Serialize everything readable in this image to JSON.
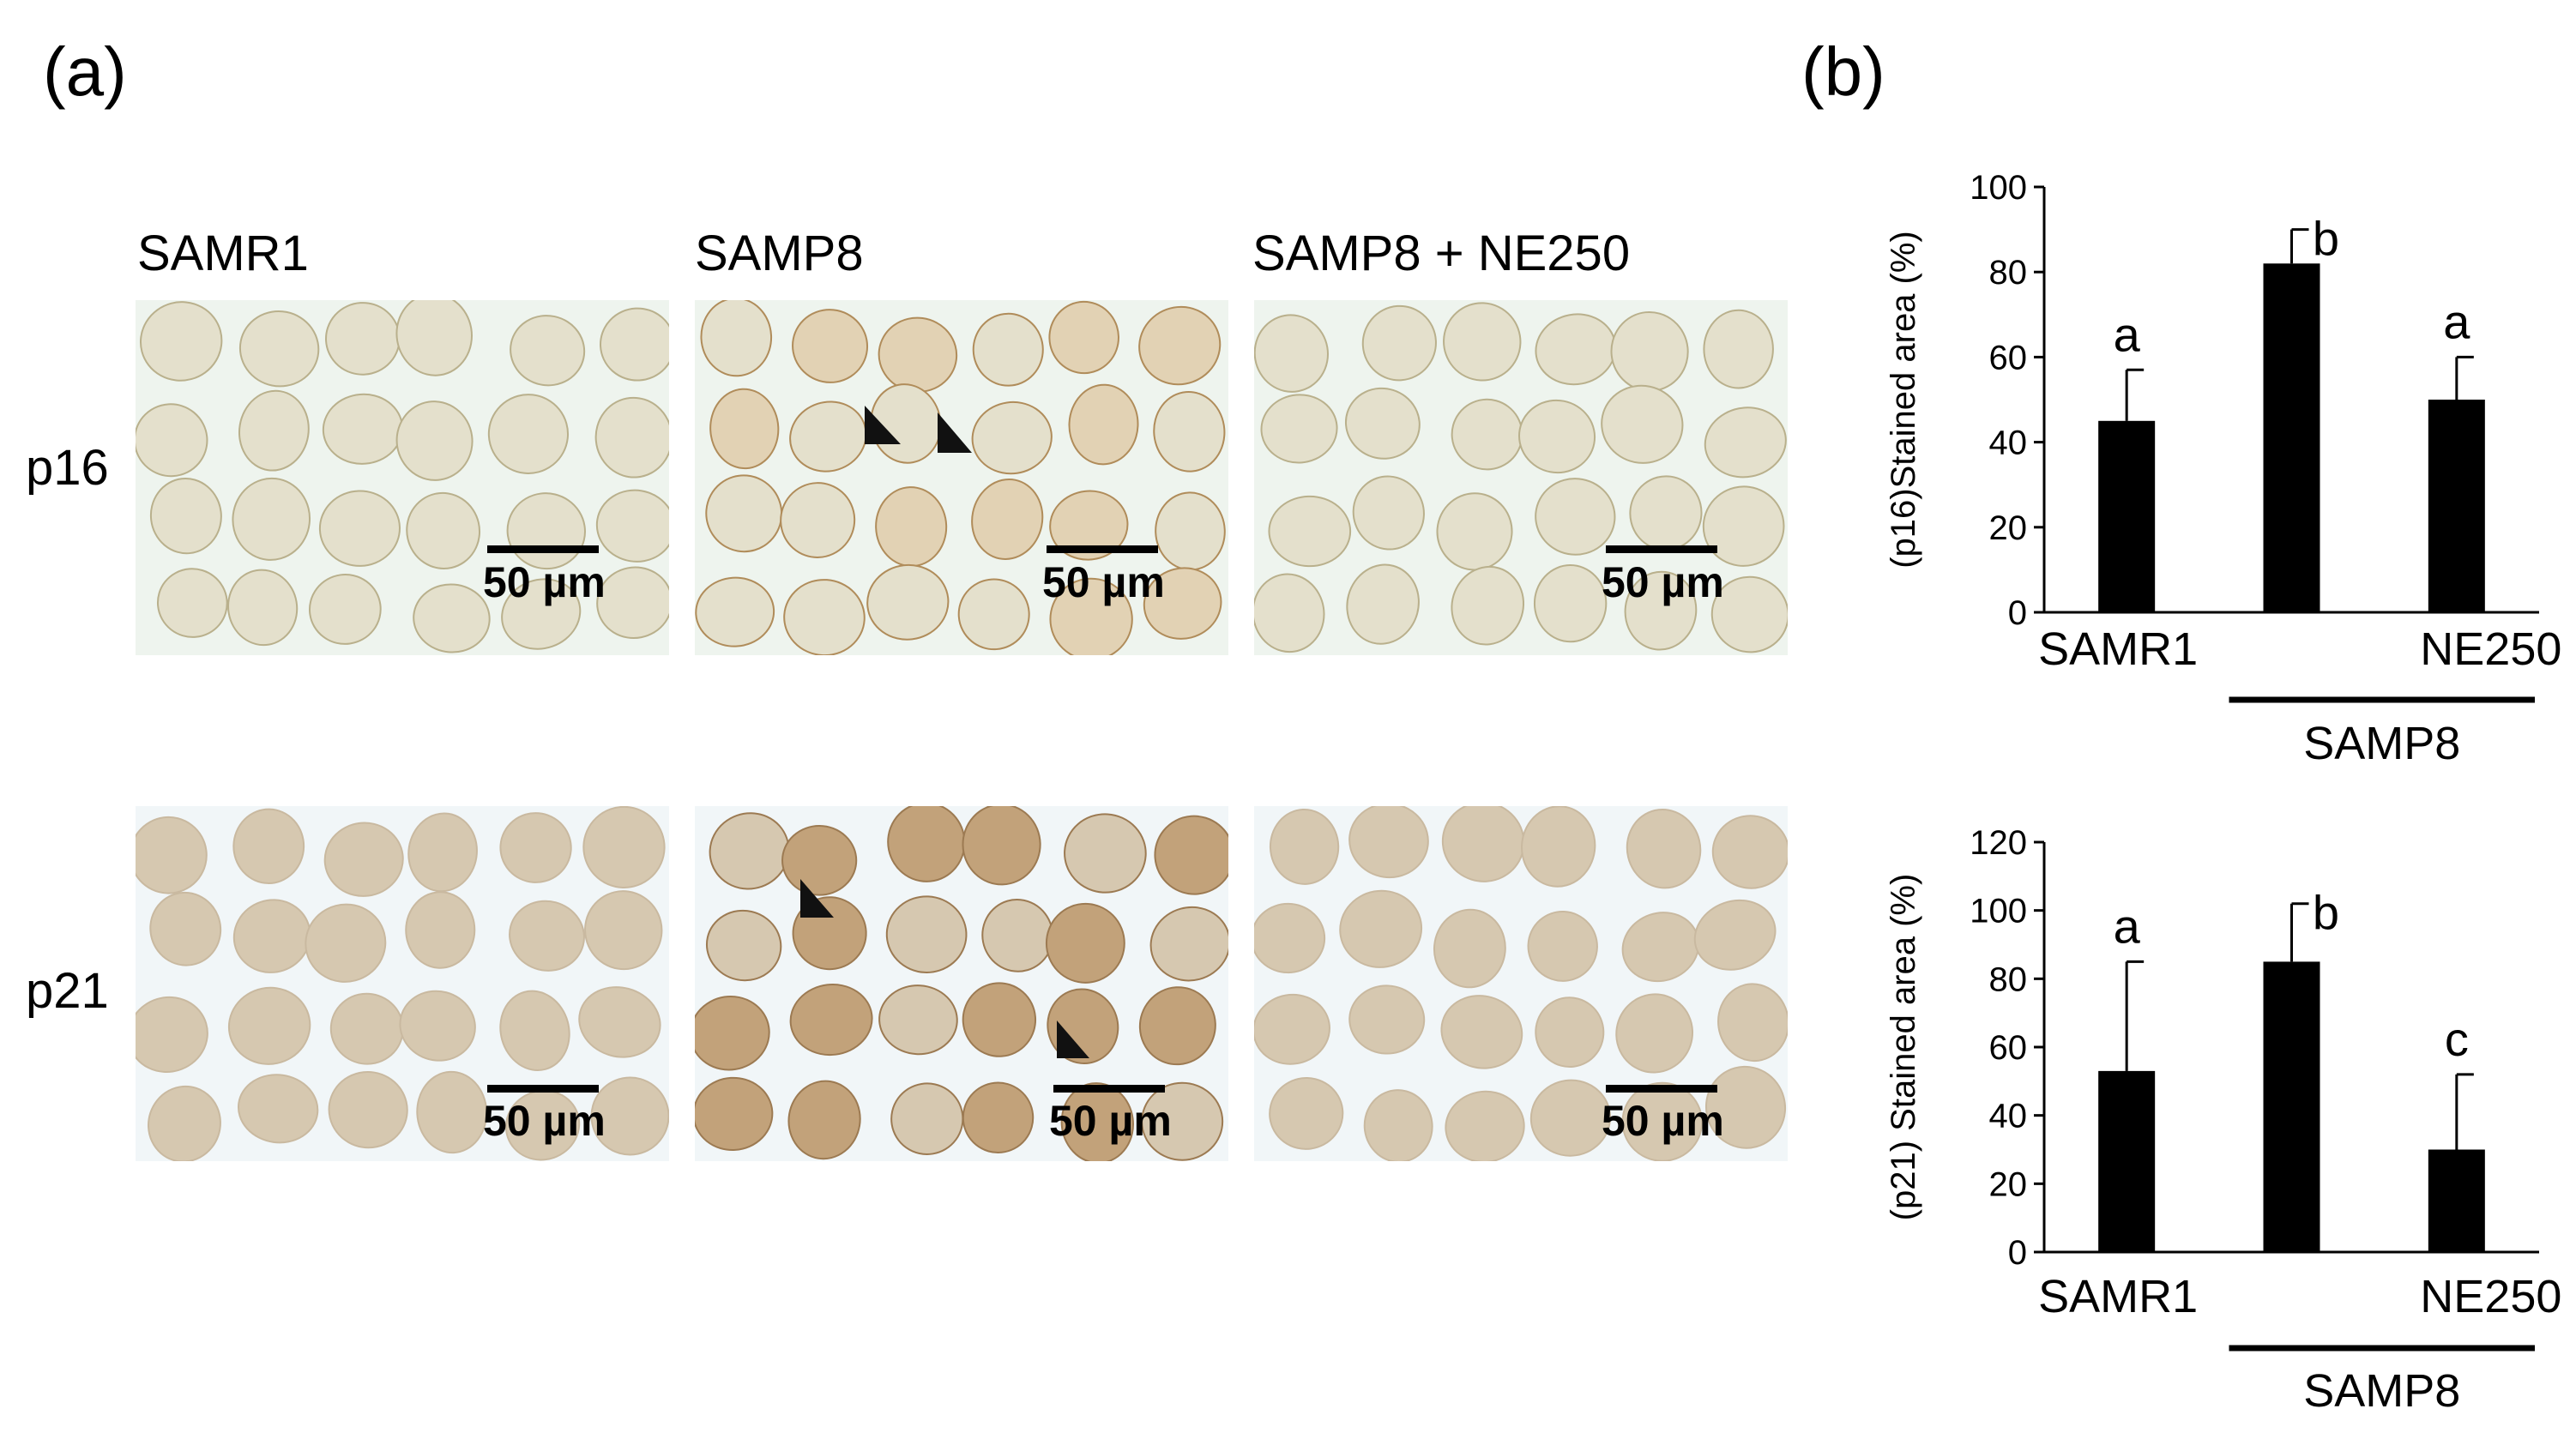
{
  "panels": {
    "a": "(a)",
    "b": "(b)"
  },
  "columns": [
    "SAMR1",
    "SAMP8",
    "SAMP8 + NE250"
  ],
  "rows": [
    "p16",
    "p21"
  ],
  "scale_label": "50 µm",
  "colors": {
    "p16_tissue": "#e4e0cc",
    "p16_tissue_edge": "#b9b08c",
    "p16_bg": "#eef4ee",
    "p21_tissue": "#d6c8b0",
    "p21_tissue_dark": "#c2a27a",
    "p21_bg": "#f1f6f8",
    "bar": "#000000"
  },
  "chart_data": [
    {
      "type": "bar",
      "ylabel": "(p16)Stained area (%)",
      "ylim": [
        0,
        100
      ],
      "yticks": [
        0,
        20,
        40,
        60,
        80,
        100
      ],
      "categories": [
        "SAMR1",
        "",
        "NE250"
      ],
      "values": [
        45,
        82,
        50
      ],
      "errors": [
        12,
        8,
        10
      ],
      "letters": [
        "a",
        "b",
        "a"
      ],
      "group_label": "SAMP8",
      "group_span": [
        1,
        2
      ]
    },
    {
      "type": "bar",
      "ylabel": "(p21) Stained area (%)",
      "ylim": [
        0,
        120
      ],
      "yticks": [
        0,
        20,
        40,
        60,
        80,
        100,
        120
      ],
      "categories": [
        "SAMR1",
        "",
        "NE250"
      ],
      "values": [
        53,
        85,
        30
      ],
      "errors": [
        32,
        17,
        22
      ],
      "letters": [
        "a",
        "b",
        "c"
      ],
      "group_label": "SAMP8",
      "group_span": [
        1,
        2
      ]
    }
  ]
}
